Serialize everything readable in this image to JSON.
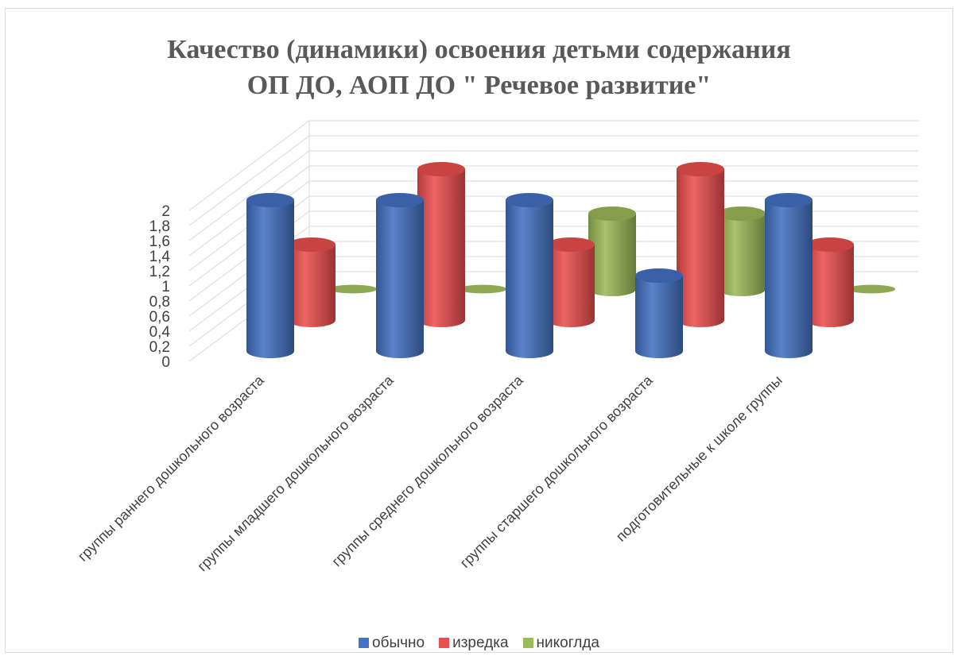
{
  "chart_data": {
    "type": "bar",
    "variant": "3d-cylinder",
    "title_lines": [
      "Качество (динамики) освоения детьми содержания",
      "ОП ДО, АОП ДО \" Речевое развитие\""
    ],
    "categories": [
      "группы раннего дошкольного возраста",
      "группы младшего дошкольного возраста",
      "группы среднего дошкольного возраста",
      "группы старшего дошкольного возраста",
      "подготовительные к школе группы"
    ],
    "series": [
      {
        "name": "обычно",
        "color": "#4472C4",
        "values": [
          2,
          2,
          2,
          1,
          2
        ]
      },
      {
        "name": "изредка",
        "color": "#ED4F4F",
        "values": [
          1,
          2,
          1,
          2,
          1
        ]
      },
      {
        "name": "никоглда",
        "color": "#9BBB59",
        "values": [
          0,
          0,
          1,
          1,
          0
        ]
      }
    ],
    "yticks": [
      "0",
      "0,2",
      "0,4",
      "0,6",
      "0,8",
      "1",
      "1,2",
      "1,4",
      "1,6",
      "1,8",
      "2"
    ],
    "ylim": [
      0,
      2
    ],
    "grid": true,
    "legend_position": "bottom"
  }
}
